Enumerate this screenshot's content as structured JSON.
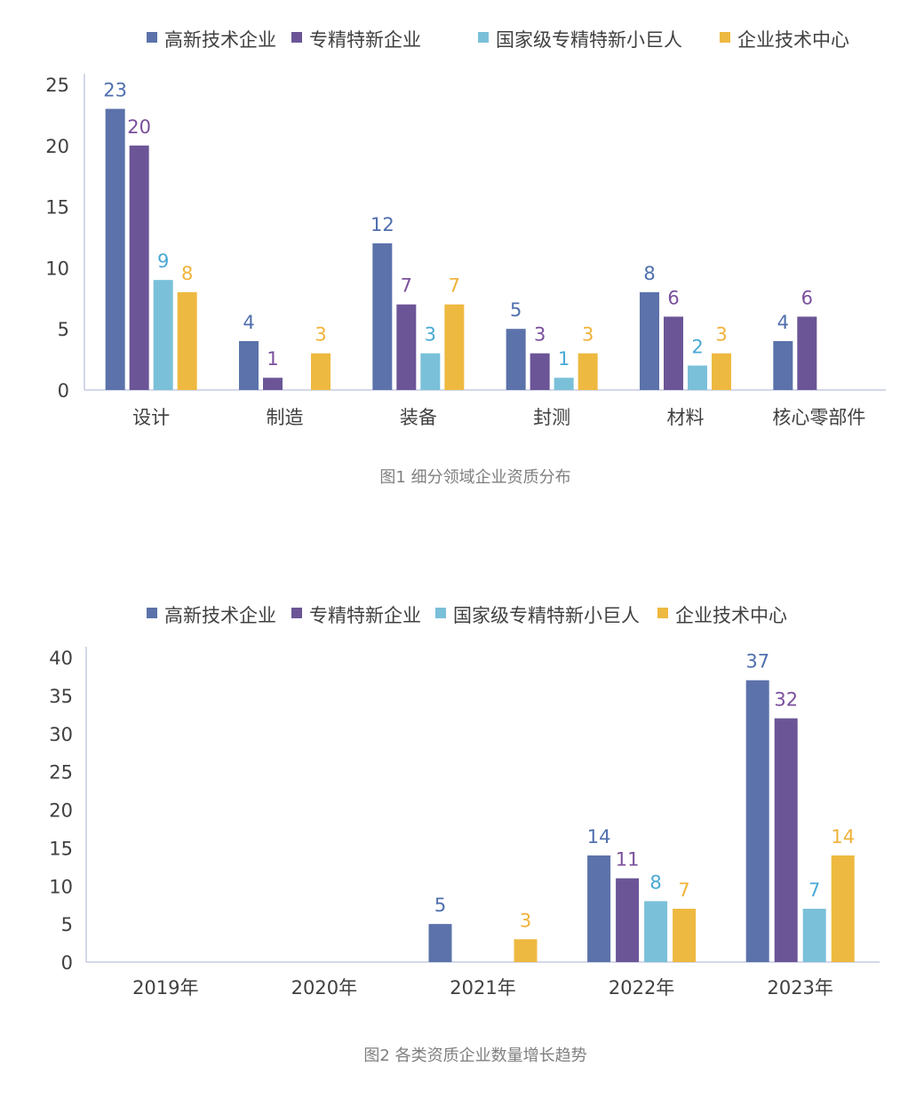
{
  "colors": {
    "series": [
      "#5b72aa",
      "#6b5597",
      "#7ac0d9",
      "#eeb940"
    ],
    "labels": [
      "#4f6fae",
      "#7b4f9c",
      "#49a9d6",
      "#f0b23a"
    ],
    "axis": "#c5cbe3"
  },
  "chart_data": [
    {
      "type": "bar",
      "title": "",
      "caption": "图1 细分领域企业资质分布",
      "categories": [
        "设计",
        "制造",
        "装备",
        "封测",
        "材料",
        "核心零部件"
      ],
      "series": [
        {
          "name": "高新技术企业",
          "values": [
            23,
            4,
            12,
            5,
            8,
            4
          ]
        },
        {
          "name": "专精特新企业",
          "values": [
            20,
            1,
            7,
            3,
            6,
            6
          ]
        },
        {
          "name": "国家级专精特新小巨人",
          "values": [
            9,
            null,
            3,
            1,
            2,
            null
          ]
        },
        {
          "name": "企业技术中心",
          "values": [
            8,
            3,
            7,
            3,
            3,
            null
          ]
        }
      ],
      "ylim": [
        0,
        25
      ],
      "yticks": [
        0,
        5,
        10,
        15,
        20,
        25
      ],
      "xlabel": "",
      "ylabel": "",
      "legend": "top",
      "grid": false
    },
    {
      "type": "bar",
      "title": "",
      "caption": "图2 各类资质企业数量增长趋势",
      "categories": [
        "2019年",
        "2020年",
        "2021年",
        "2022年",
        "2023年"
      ],
      "series": [
        {
          "name": "高新技术企业",
          "values": [
            null,
            null,
            5,
            14,
            37
          ]
        },
        {
          "name": "专精特新企业",
          "values": [
            null,
            null,
            null,
            11,
            32
          ]
        },
        {
          "name": "国家级专精特新小巨人",
          "values": [
            null,
            null,
            null,
            8,
            7
          ]
        },
        {
          "name": "企业技术中心",
          "values": [
            null,
            null,
            3,
            7,
            14
          ]
        }
      ],
      "ylim": [
        0,
        40
      ],
      "yticks": [
        0,
        5,
        10,
        15,
        20,
        25,
        30,
        35,
        40
      ],
      "xlabel": "",
      "ylabel": "",
      "legend": "top",
      "grid": false
    }
  ]
}
